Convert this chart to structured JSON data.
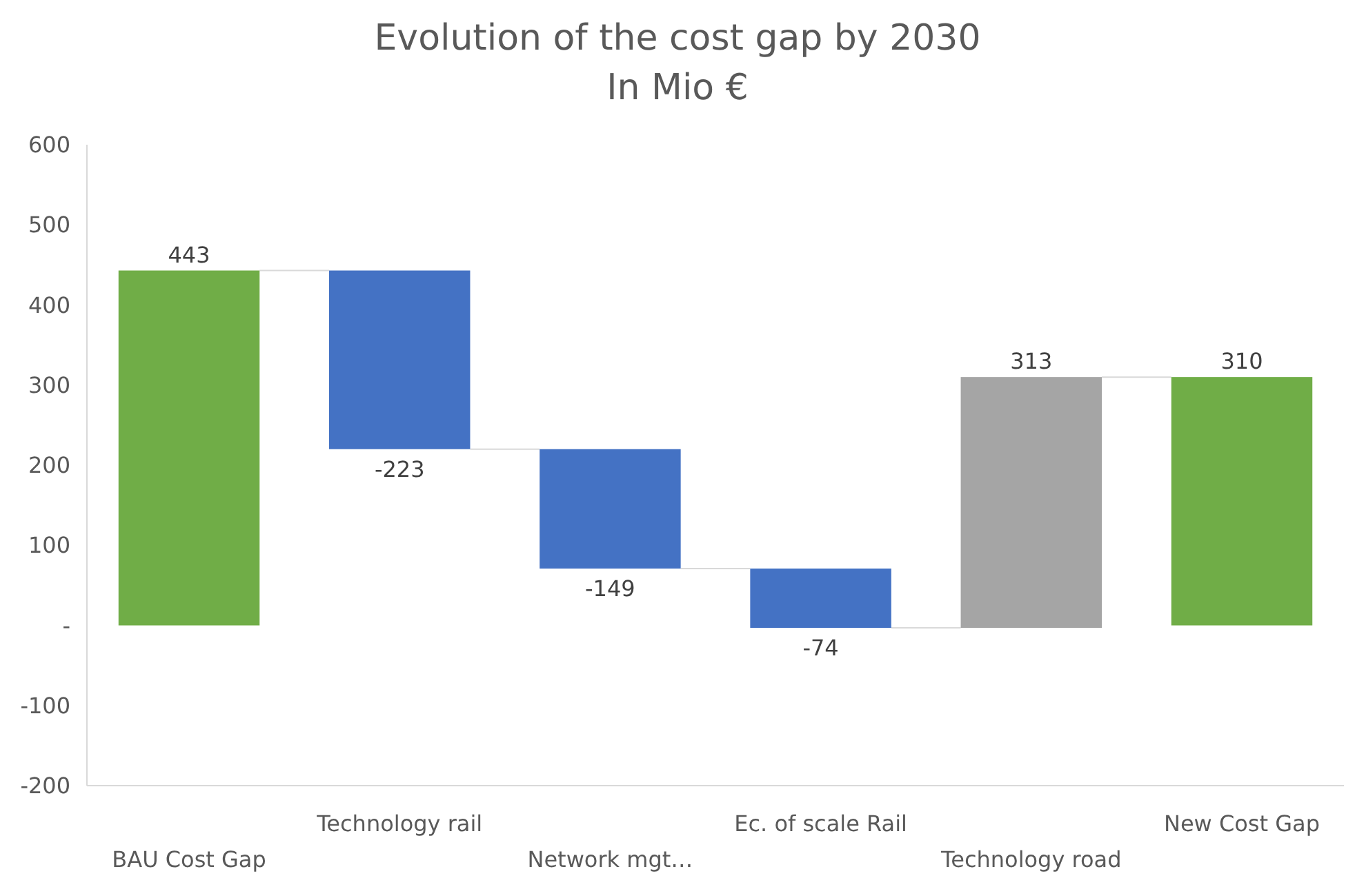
{
  "chart_data": {
    "type": "bar",
    "title": "Evolution of the cost gap by 2030",
    "subtitle": "In Mio €",
    "categories": [
      "BAU Cost Gap",
      "Technology rail",
      "Network mgt…",
      "Ec. of scale Rail",
      "Technology road",
      "New Cost Gap"
    ],
    "values": [
      443,
      -223,
      -149,
      -74,
      313,
      310
    ],
    "base": [
      0,
      443,
      220,
      71,
      -3,
      0
    ],
    "colors": [
      "#70ad47",
      "#4472c4",
      "#4472c4",
      "#4472c4",
      "#a5a5a5",
      "#70ad47"
    ],
    "ylim": [
      -200,
      600
    ],
    "yticks": [
      -200,
      -100,
      {
        "value": 0,
        "label": "-"
      },
      100,
      200,
      300,
      400,
      500,
      600
    ],
    "data_labels": true,
    "grid": false
  }
}
